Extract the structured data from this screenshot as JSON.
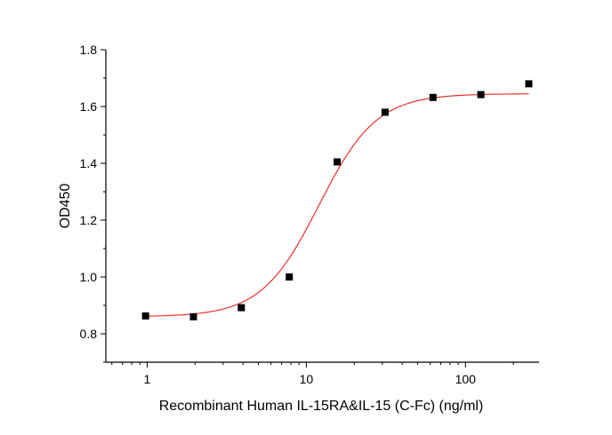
{
  "chart_data": {
    "type": "scatter",
    "xlabel": "Recombinant Human IL-15RA&IL-15 (C-Fc) (ng/ml)",
    "ylabel": "OD450",
    "xscale": "log",
    "xlim": [
      0.55,
      290
    ],
    "ylim": [
      0.7,
      1.8
    ],
    "xticks": [
      {
        "value": 1,
        "label": "1"
      },
      {
        "value": 10,
        "label": "10"
      },
      {
        "value": 100,
        "label": "100"
      }
    ],
    "yticks": [
      {
        "value": 0.8,
        "label": "0.8"
      },
      {
        "value": 1.0,
        "label": "1.0"
      },
      {
        "value": 1.2,
        "label": "1.2"
      },
      {
        "value": 1.4,
        "label": "1.4"
      },
      {
        "value": 1.6,
        "label": "1.6"
      },
      {
        "value": 1.8,
        "label": "1.8"
      }
    ],
    "series": [
      {
        "x": [
          0.977,
          1.953,
          3.906,
          7.813,
          15.625,
          31.25,
          62.5,
          125,
          250
        ],
        "y": [
          0.863,
          0.86,
          0.892,
          1.0,
          1.405,
          1.58,
          1.632,
          1.642,
          1.68
        ],
        "marker_color": "#000000"
      }
    ],
    "fit": {
      "type": "4PL",
      "bottom": 0.86,
      "top": 1.645,
      "ec50": 12.0,
      "hill": 2.4,
      "x_range": [
        0.977,
        250
      ],
      "color": "#e8302e"
    },
    "grid": false,
    "legend": "none"
  }
}
